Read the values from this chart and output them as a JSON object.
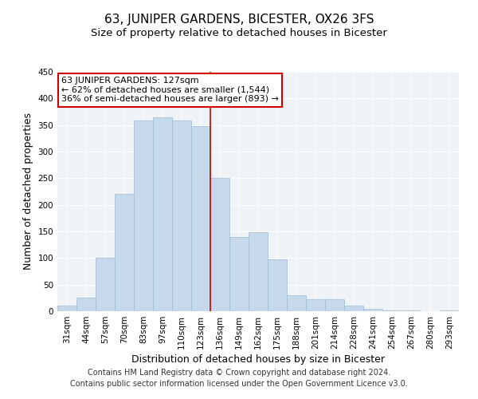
{
  "title": "63, JUNIPER GARDENS, BICESTER, OX26 3FS",
  "subtitle": "Size of property relative to detached houses in Bicester",
  "xlabel": "Distribution of detached houses by size in Bicester",
  "ylabel": "Number of detached properties",
  "bar_labels": [
    "31sqm",
    "44sqm",
    "57sqm",
    "70sqm",
    "83sqm",
    "97sqm",
    "110sqm",
    "123sqm",
    "136sqm",
    "149sqm",
    "162sqm",
    "175sqm",
    "188sqm",
    "201sqm",
    "214sqm",
    "228sqm",
    "241sqm",
    "254sqm",
    "267sqm",
    "280sqm",
    "293sqm"
  ],
  "bar_values": [
    10,
    25,
    100,
    220,
    358,
    365,
    358,
    348,
    250,
    140,
    148,
    97,
    30,
    22,
    22,
    11,
    4,
    2,
    2,
    0,
    2
  ],
  "bar_color": "#c5d9ea",
  "bar_edge_color": "#a0bcd4",
  "highlight_line_color": "#cc0000",
  "annotation_text": "63 JUNIPER GARDENS: 127sqm\n← 62% of detached houses are smaller (1,544)\n36% of semi-detached houses are larger (893) →",
  "annotation_box_color": "#ffffff",
  "annotation_box_edge_color": "#cc0000",
  "ylim": [
    0,
    450
  ],
  "yticks": [
    0,
    50,
    100,
    150,
    200,
    250,
    300,
    350,
    400,
    450
  ],
  "footer_line1": "Contains HM Land Registry data © Crown copyright and database right 2024.",
  "footer_line2": "Contains public sector information licensed under the Open Government Licence v3.0.",
  "background_color": "#ffffff",
  "plot_bg_color": "#eef3f8",
  "grid_color": "#ffffff",
  "title_fontsize": 11,
  "subtitle_fontsize": 9.5,
  "axis_label_fontsize": 9,
  "tick_fontsize": 7.5,
  "annotation_fontsize": 8,
  "footer_fontsize": 7
}
